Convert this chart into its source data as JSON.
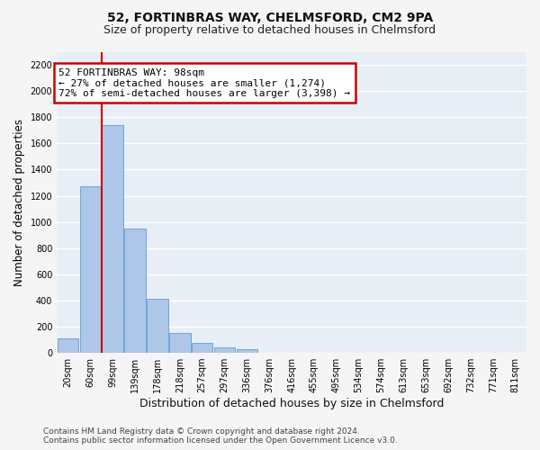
{
  "title1": "52, FORTINBRAS WAY, CHELMSFORD, CM2 9PA",
  "title2": "Size of property relative to detached houses in Chelmsford",
  "xlabel": "Distribution of detached houses by size in Chelmsford",
  "ylabel": "Number of detached properties",
  "footnote1": "Contains HM Land Registry data © Crown copyright and database right 2024.",
  "footnote2": "Contains public sector information licensed under the Open Government Licence v3.0.",
  "bar_labels": [
    "20sqm",
    "60sqm",
    "99sqm",
    "139sqm",
    "178sqm",
    "218sqm",
    "257sqm",
    "297sqm",
    "336sqm",
    "376sqm",
    "416sqm",
    "455sqm",
    "495sqm",
    "534sqm",
    "574sqm",
    "613sqm",
    "653sqm",
    "692sqm",
    "732sqm",
    "771sqm",
    "811sqm"
  ],
  "bar_values": [
    110,
    1270,
    1740,
    950,
    415,
    150,
    75,
    45,
    25,
    0,
    0,
    0,
    0,
    0,
    0,
    0,
    0,
    0,
    0,
    0,
    0
  ],
  "bar_color": "#aec6e8",
  "bar_edge_color": "#5a9fd4",
  "red_line_bar_index": 2,
  "annotation_line1": "52 FORTINBRAS WAY: 98sqm",
  "annotation_line2": "← 27% of detached houses are smaller (1,274)",
  "annotation_line3": "72% of semi-detached houses are larger (3,398) →",
  "annotation_box_color": "#ffffff",
  "annotation_border_color": "#cc0000",
  "ylim": [
    0,
    2300
  ],
  "yticks": [
    0,
    200,
    400,
    600,
    800,
    1000,
    1200,
    1400,
    1600,
    1800,
    2000,
    2200
  ],
  "background_color": "#e8eef6",
  "grid_color": "#ffffff",
  "title1_fontsize": 10,
  "title2_fontsize": 9,
  "ylabel_fontsize": 8.5,
  "xlabel_fontsize": 9,
  "tick_fontsize": 7,
  "annotation_fontsize": 8,
  "footnote_fontsize": 6.5
}
